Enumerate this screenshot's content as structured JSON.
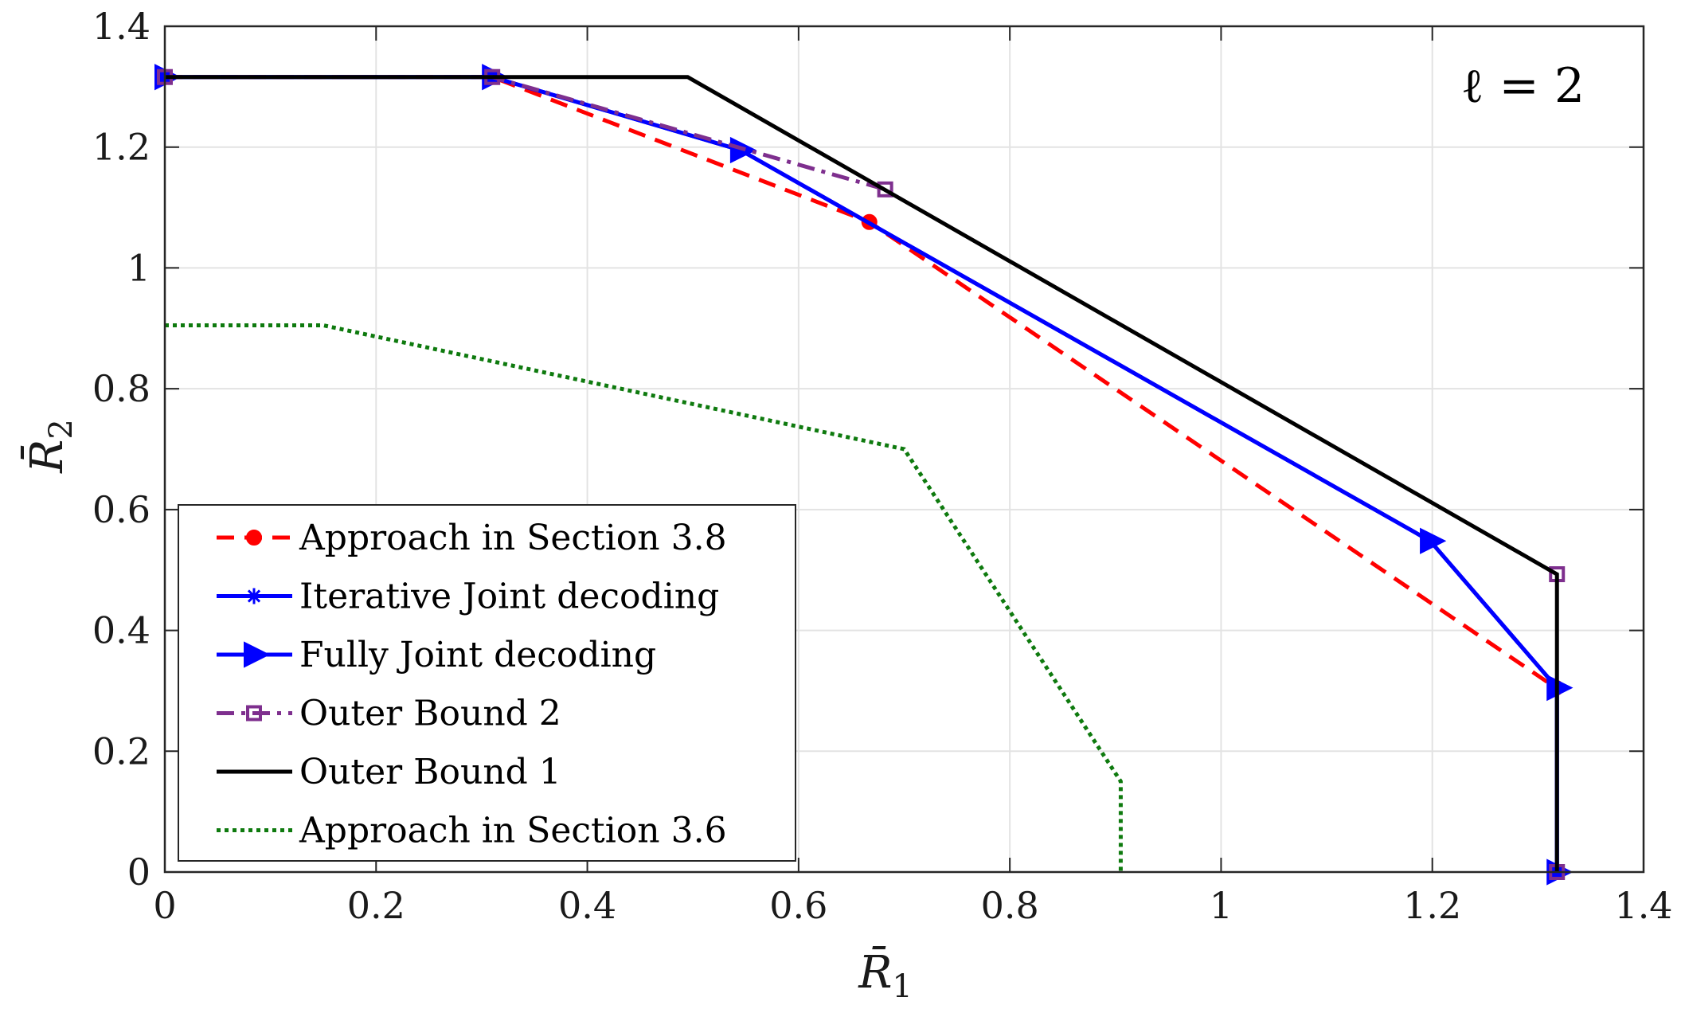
{
  "chart_data": {
    "type": "line",
    "title": "",
    "xlabel": "R̄",
    "xlabel_sub": "1",
    "ylabel": "R̄",
    "ylabel_sub": "2",
    "xlim": [
      0,
      1.4
    ],
    "ylim": [
      0,
      1.4
    ],
    "xticks": [
      0,
      0.2,
      0.4,
      0.6,
      0.8,
      1,
      1.2,
      1.4
    ],
    "yticks": [
      0,
      0.2,
      0.4,
      0.6,
      0.8,
      1,
      1.2,
      1.4
    ],
    "xtick_labels": [
      "0",
      "0.2",
      "0.4",
      "0.6",
      "0.8",
      "1",
      "1.2",
      "1.4"
    ],
    "ytick_labels": [
      "0",
      "0.2",
      "0.4",
      "0.6",
      "0.8",
      "1",
      "1.2",
      "1.4"
    ],
    "grid": true,
    "annotation": "ℓ = 2",
    "legend_position": "lower-left",
    "series": [
      {
        "name": "Approach in Section 3.8",
        "color": "#ff0000",
        "dash": "dashed",
        "marker": "dot",
        "marker_x": [
          0,
          0.31,
          0.667,
          1.317
        ],
        "marker_y": [
          1.316,
          1.316,
          1.076,
          0.305
        ],
        "x": [
          0,
          0.31,
          0.667,
          1.317
        ],
        "y": [
          1.316,
          1.316,
          1.076,
          0.305
        ]
      },
      {
        "name": "Iterative Joint decoding",
        "color": "#0000ff",
        "dash": "solid",
        "marker": "asterisk",
        "marker_x": [],
        "marker_y": [],
        "x": [
          0,
          0.31,
          0.545,
          1.198,
          1.318,
          1.318
        ],
        "y": [
          1.316,
          1.316,
          1.195,
          0.548,
          0.305,
          0
        ]
      },
      {
        "name": "Fully Joint decoding",
        "color": "#0000ff",
        "dash": "solid",
        "marker": "triangle-right",
        "marker_x": [
          0,
          0.31,
          0.545,
          1.198,
          1.318,
          1.318
        ],
        "marker_y": [
          1.316,
          1.316,
          1.195,
          0.548,
          0.305,
          0
        ],
        "x": [
          0,
          0.31,
          0.545,
          1.198,
          1.318,
          1.318
        ],
        "y": [
          1.316,
          1.316,
          1.195,
          0.548,
          0.305,
          0
        ]
      },
      {
        "name": "Outer Bound 2",
        "color": "#7e2f8e",
        "dash": "dashdot",
        "marker": "square",
        "marker_x": [
          0,
          0.31,
          0.682,
          1.318,
          1.318
        ],
        "marker_y": [
          1.316,
          1.316,
          1.13,
          0.493,
          0
        ],
        "x": [
          0,
          0.31,
          0.682
        ],
        "y": [
          1.316,
          1.316,
          1.13
        ]
      },
      {
        "name": "Outer Bound 1",
        "color": "#000000",
        "dash": "solid",
        "marker": "none",
        "marker_x": [],
        "marker_y": [],
        "x": [
          0,
          0.495,
          1.318,
          1.318
        ],
        "y": [
          1.316,
          1.316,
          0.493,
          0
        ]
      },
      {
        "name": "Approach in Section 3.6",
        "color": "#0e7a0e",
        "dash": "dotted",
        "marker": "none",
        "marker_x": [],
        "marker_y": [],
        "x": [
          0,
          0.15,
          0.7,
          0.905,
          0.905
        ],
        "y": [
          0.905,
          0.905,
          0.7,
          0.15,
          0
        ]
      }
    ]
  }
}
